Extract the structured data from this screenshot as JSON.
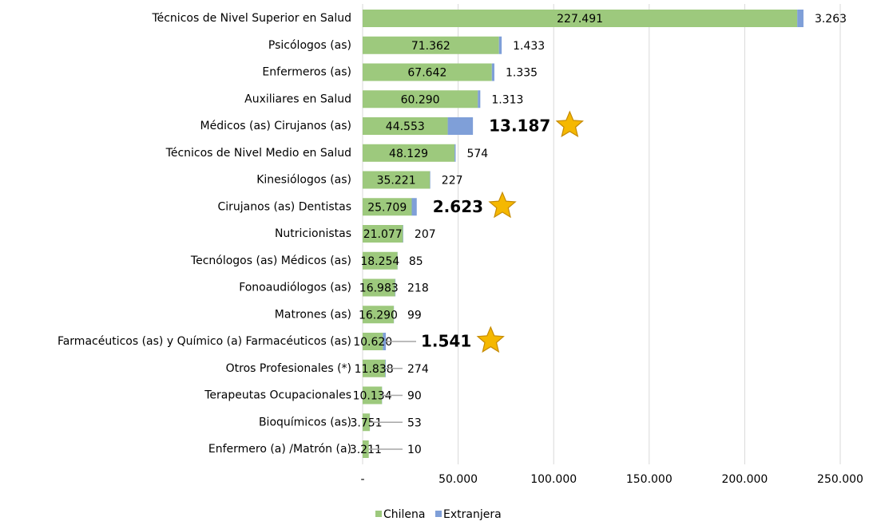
{
  "chart_data": {
    "type": "stacked_barh",
    "categories": [
      "Técnicos de Nivel Superior en Salud",
      "Psicólogos (as)",
      "Enfermeros (as)",
      "Auxiliares en Salud",
      "Médicos (as) Cirujanos (as)",
      "Técnicos de Nivel Medio en Salud",
      "Kinesiólogos (as)",
      "Cirujanos (as) Dentistas",
      "Nutricionistas",
      "Tecnólogos (as) Médicos (as)",
      "Fonoaudiólogos (as)",
      "Matrones (as)",
      "Farmacéuticos (as) y Químico (a) Farmacéuticos (as)",
      "Otros Profesionales (*)",
      "Terapeutas Ocupacionales",
      "Bioquímicos (as)",
      "Enfermero (a) /Matrón (a)"
    ],
    "series": [
      {
        "name": "Chilena",
        "color": "#9dc97d",
        "values": [
          227491,
          71362,
          67642,
          60290,
          44553,
          48129,
          35221,
          25709,
          21077,
          18254,
          16983,
          16290,
          10620,
          11838,
          10134,
          3751,
          3211
        ],
        "value_labels": [
          "227.491",
          "71.362",
          "67.642",
          "60.290",
          "44.553",
          "48.129",
          "35.221",
          "25.709",
          "21.077",
          "18.254",
          "16.983",
          "16.290",
          "10.620",
          "11.838",
          "10.134",
          "3.751",
          "3.211"
        ]
      },
      {
        "name": "Extranjera",
        "color": "#7f9fd8",
        "values": [
          3263,
          1433,
          1335,
          1313,
          13187,
          574,
          227,
          2623,
          207,
          85,
          218,
          99,
          1541,
          274,
          90,
          53,
          10
        ],
        "value_labels": [
          "3.263",
          "1.433",
          "1.335",
          "1.313",
          "13.187",
          "574",
          "227",
          "2.623",
          "207",
          "85",
          "218",
          "99",
          "1.541",
          "274",
          "90",
          "53",
          "10"
        ]
      }
    ],
    "highlight": [
      4,
      7,
      12
    ],
    "xlim": [
      0,
      250000
    ],
    "xticks": [
      {
        "value": 0,
        "label": "-"
      },
      {
        "value": 50000,
        "label": "50.000"
      },
      {
        "value": 100000,
        "label": "100.000"
      },
      {
        "value": 150000,
        "label": "150.000"
      },
      {
        "value": 200000,
        "label": "200.000"
      },
      {
        "value": 250000,
        "label": "250.000"
      }
    ],
    "grid": true,
    "legend": "bottom"
  }
}
